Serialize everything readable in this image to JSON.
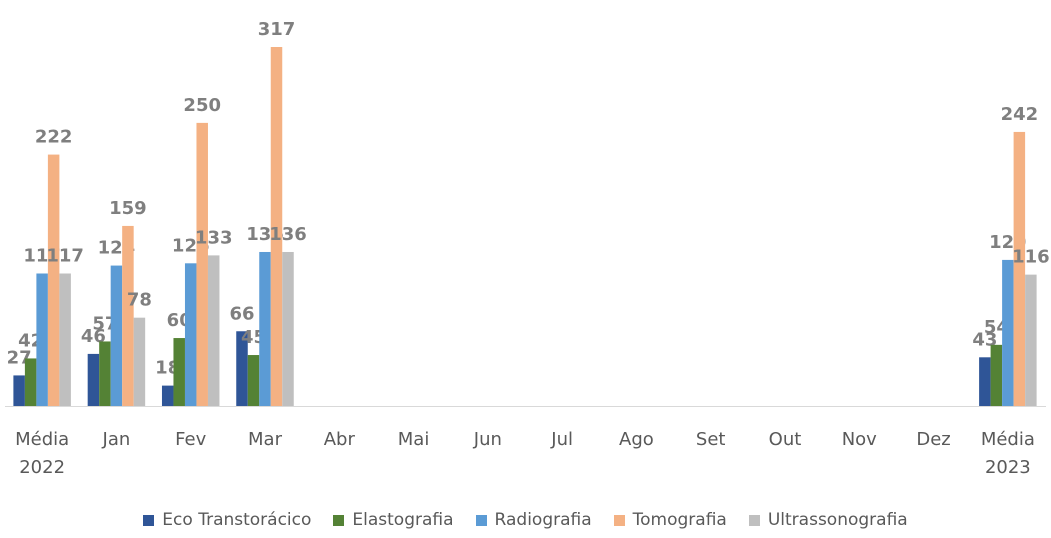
{
  "chart_data": {
    "type": "bar",
    "categories": [
      "Média 2022",
      "Jan",
      "Fev",
      "Mar",
      "Abr",
      "Mai",
      "Jun",
      "Jul",
      "Ago",
      "Set",
      "Out",
      "Nov",
      "Dez",
      "Média 2023"
    ],
    "series": [
      {
        "name": "Eco Transtorácico",
        "color": "#2f5597",
        "values": [
          27,
          46,
          18,
          66,
          null,
          null,
          null,
          null,
          null,
          null,
          null,
          null,
          null,
          43
        ]
      },
      {
        "name": "Elastografia",
        "color": "#548235",
        "values": [
          42,
          57,
          60,
          45,
          null,
          null,
          null,
          null,
          null,
          null,
          null,
          null,
          null,
          54
        ]
      },
      {
        "name": "Radiografia",
        "color": "#5b9bd5",
        "values": [
          117,
          124,
          126,
          136,
          null,
          null,
          null,
          null,
          null,
          null,
          null,
          null,
          null,
          129
        ]
      },
      {
        "name": "Tomografia",
        "color": "#f4b183",
        "values": [
          222,
          159,
          250,
          317,
          null,
          null,
          null,
          null,
          null,
          null,
          null,
          null,
          null,
          242
        ]
      },
      {
        "name": "Ultrassonografia",
        "color": "#bfbfbf",
        "values": [
          117,
          78,
          133,
          136,
          null,
          null,
          null,
          null,
          null,
          null,
          null,
          null,
          null,
          116
        ]
      }
    ],
    "legend": "bottom"
  }
}
